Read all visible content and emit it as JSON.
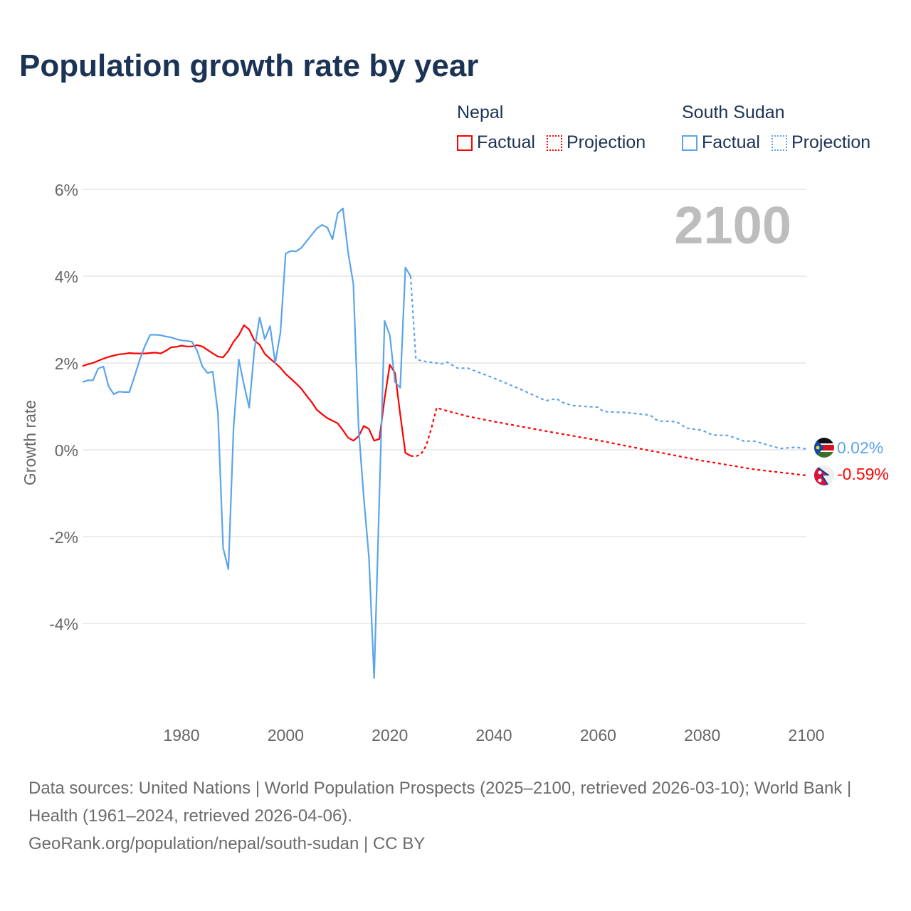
{
  "title": "Population growth rate by year",
  "legend": {
    "groups": [
      {
        "name": "Nepal",
        "factual": "Factual",
        "projection": "Projection",
        "color": "#ff0000"
      },
      {
        "name": "South Sudan",
        "factual": "Factual",
        "projection": "Projection",
        "color": "#5ba4ea"
      }
    ]
  },
  "year_display": "2100",
  "end_labels": {
    "south_sudan": "0.02%",
    "nepal": "-0.59%"
  },
  "footer": {
    "sources": "Data sources: United Nations | World Population Prospects (2025–2100, retrieved 2026-03-10); World Bank | Health (1961–2024, retrieved 2026-04-06).",
    "credit": "GeoRank.org/population/nepal/south-sudan | CC BY"
  },
  "chart_data": {
    "type": "line",
    "title": "Population growth rate by year",
    "xlabel": "",
    "ylabel": "Growth rate",
    "xlim": [
      1961,
      2100
    ],
    "ylim": [
      -5.9,
      6
    ],
    "xticks": [
      1980,
      2000,
      2020,
      2040,
      2060,
      2080,
      2100
    ],
    "xtick_labels": [
      "1980",
      "2000",
      "2020",
      "2040",
      "2060",
      "2080",
      "2100"
    ],
    "yticks": [
      6,
      4,
      2,
      0,
      -2,
      -4
    ],
    "ytick_labels": [
      "6%",
      "4%",
      "2%",
      "0%",
      "-2%",
      "-4%"
    ],
    "grid": true,
    "legend_position": "top-right",
    "series": [
      {
        "name": "Nepal Factual",
        "color": "#ff0000",
        "style": "solid",
        "x_start": 1961,
        "values": [
          1.93,
          1.97,
          2.0,
          2.05,
          2.1,
          2.14,
          2.17,
          2.2,
          2.21,
          2.23,
          2.22,
          2.22,
          2.22,
          2.23,
          2.24,
          2.22,
          2.28,
          2.36,
          2.37,
          2.4,
          2.38,
          2.38,
          2.41,
          2.38,
          2.3,
          2.22,
          2.15,
          2.13,
          2.28,
          2.49,
          2.64,
          2.87,
          2.77,
          2.52,
          2.42,
          2.21,
          2.1,
          2.0,
          1.89,
          1.75,
          1.64,
          1.53,
          1.41,
          1.25,
          1.1,
          0.92,
          0.82,
          0.73,
          0.67,
          0.61,
          0.45,
          0.28,
          0.21,
          0.31,
          0.55,
          0.48,
          0.21,
          0.25,
          1.18,
          1.96,
          1.77,
          0.82,
          -0.07,
          -0.14
        ]
      },
      {
        "name": "Nepal Projection",
        "color": "#ff0000",
        "style": "dotted",
        "x": [
          2024,
          2025,
          2026,
          2027,
          2028,
          2029,
          2030,
          2035,
          2040,
          2050,
          2060,
          2070,
          2080,
          2090,
          2100
        ],
        "values": [
          -0.14,
          -0.15,
          -0.1,
          0.1,
          0.5,
          0.97,
          0.93,
          0.77,
          0.65,
          0.43,
          0.22,
          -0.02,
          -0.25,
          -0.45,
          -0.59
        ]
      },
      {
        "name": "South Sudan Factual",
        "color": "#5ba4ea",
        "style": "solid",
        "x_start": 1961,
        "values": [
          1.56,
          1.6,
          1.6,
          1.87,
          1.92,
          1.46,
          1.28,
          1.34,
          1.33,
          1.33,
          1.7,
          2.08,
          2.4,
          2.65,
          2.65,
          2.64,
          2.61,
          2.59,
          2.55,
          2.52,
          2.51,
          2.49,
          2.28,
          1.92,
          1.77,
          1.8,
          0.85,
          -2.26,
          -2.75,
          0.52,
          2.08,
          1.5,
          0.97,
          2.3,
          3.05,
          2.55,
          2.85,
          2.0,
          2.7,
          4.52,
          4.58,
          4.57,
          4.65,
          4.8,
          4.95,
          5.1,
          5.18,
          5.12,
          4.85,
          5.45,
          5.56,
          4.55,
          3.82,
          0.52,
          -1.1,
          -2.48,
          -5.26,
          -1.1,
          2.97,
          2.64,
          1.56,
          1.43,
          4.2,
          4.0
        ]
      },
      {
        "name": "South Sudan Projection",
        "color": "#5ba4ea",
        "style": "dotted",
        "x": [
          2024,
          2025,
          2026,
          2030,
          2031,
          2033,
          2035,
          2040,
          2045,
          2050,
          2052,
          2053,
          2055,
          2060,
          2061,
          2065,
          2070,
          2071,
          2072,
          2075,
          2077,
          2080,
          2082,
          2085,
          2088,
          2090,
          2095,
          2098,
          2100
        ],
        "values": [
          4.0,
          2.1,
          2.05,
          1.98,
          2.02,
          1.88,
          1.88,
          1.65,
          1.4,
          1.13,
          1.18,
          1.1,
          1.02,
          0.98,
          0.88,
          0.86,
          0.8,
          0.7,
          0.66,
          0.65,
          0.5,
          0.45,
          0.34,
          0.33,
          0.2,
          0.2,
          0.03,
          0.06,
          0.02
        ]
      }
    ]
  }
}
